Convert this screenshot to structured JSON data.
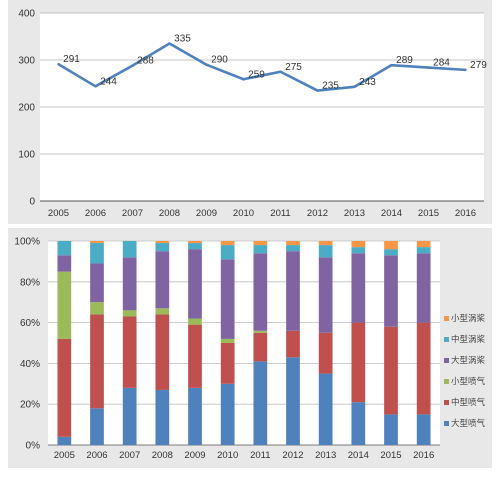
{
  "chart_data": [
    {
      "type": "line",
      "title": "",
      "xlabel": "",
      "ylabel": "",
      "x": [
        "2005",
        "2006",
        "2007",
        "2008",
        "2009",
        "2010",
        "2011",
        "2012",
        "2013",
        "2014",
        "2015",
        "2016"
      ],
      "series": [
        {
          "values": [
            291,
            244,
            288,
            335,
            290,
            259,
            275,
            235,
            243,
            289,
            284,
            279
          ],
          "color": "#4f81bd"
        }
      ],
      "data_labels": [
        "291",
        "244",
        "288",
        "335",
        "290",
        "259",
        "275",
        "235",
        "243",
        "289",
        "284",
        "279"
      ],
      "ylim": [
        0,
        400
      ],
      "yticks": [
        "0",
        "100",
        "200",
        "300",
        "400"
      ],
      "grid": true
    },
    {
      "type": "bar",
      "stacked": true,
      "normalized": true,
      "title": "",
      "xlabel": "",
      "ylabel": "",
      "categories": [
        "2005",
        "2006",
        "2007",
        "2008",
        "2009",
        "2010",
        "2011",
        "2012",
        "2013",
        "2014",
        "2015",
        "2016"
      ],
      "series": [
        {
          "name": "大型喷气",
          "color": "#4f81bd",
          "values": [
            4,
            18,
            28,
            27,
            28,
            30,
            41,
            43,
            35,
            21,
            15,
            15
          ]
        },
        {
          "name": "中型喷气",
          "color": "#c0504d",
          "values": [
            48,
            46,
            35,
            37,
            31,
            20,
            14,
            13,
            20,
            39,
            43,
            45
          ]
        },
        {
          "name": "小型喷气",
          "color": "#9bbb59",
          "values": [
            33,
            6,
            3,
            3,
            3,
            2,
            1,
            0,
            0,
            0,
            0,
            0
          ]
        },
        {
          "name": "大型涡桨",
          "color": "#8064a2",
          "values": [
            8,
            19,
            26,
            28,
            34,
            39,
            38,
            39,
            37,
            34,
            35,
            34
          ]
        },
        {
          "name": "中型涡桨",
          "color": "#4bacc6",
          "values": [
            7,
            10,
            8,
            4,
            3,
            7,
            4,
            3,
            6,
            3,
            3,
            3
          ]
        },
        {
          "name": "小型涡桨",
          "color": "#f79646",
          "values": [
            0,
            1,
            0,
            1,
            1,
            2,
            2,
            2,
            2,
            3,
            4,
            3
          ]
        }
      ],
      "ylim": [
        0,
        100
      ],
      "yticks": [
        "0%",
        "20%",
        "40%",
        "60%",
        "80%",
        "100%"
      ],
      "grid": true,
      "legend": "right"
    }
  ]
}
